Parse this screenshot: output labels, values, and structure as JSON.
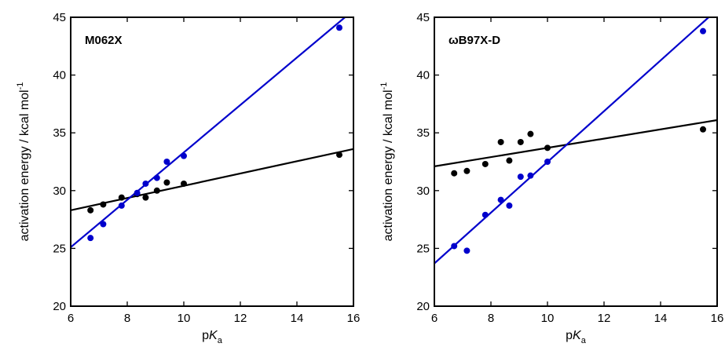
{
  "chart_data": [
    {
      "type": "scatter",
      "panel_label": "M062X",
      "xlabel": "pK_a",
      "ylabel": "activation energy / kcal mol^-1",
      "xlim": [
        6,
        16
      ],
      "ylim": [
        20,
        45
      ],
      "xticks": [
        6,
        8,
        10,
        12,
        14,
        16
      ],
      "yticks": [
        20,
        25,
        30,
        35,
        40,
        45
      ],
      "series": [
        {
          "color": "#000000",
          "points": [
            {
              "x": 6.7,
              "y": 28.3
            },
            {
              "x": 7.15,
              "y": 28.8
            },
            {
              "x": 7.8,
              "y": 29.4
            },
            {
              "x": 8.35,
              "y": 29.7
            },
            {
              "x": 8.65,
              "y": 29.4
            },
            {
              "x": 9.05,
              "y": 30.0
            },
            {
              "x": 9.4,
              "y": 30.7
            },
            {
              "x": 10.0,
              "y": 30.6
            },
            {
              "x": 15.5,
              "y": 33.1
            }
          ],
          "fit": {
            "x1": 6,
            "y1": 28.3,
            "x2": 16,
            "y2": 33.6
          }
        },
        {
          "color": "#0000cc",
          "points": [
            {
              "x": 6.7,
              "y": 25.9
            },
            {
              "x": 7.15,
              "y": 27.1
            },
            {
              "x": 7.8,
              "y": 28.7
            },
            {
              "x": 8.35,
              "y": 29.8
            },
            {
              "x": 8.65,
              "y": 30.6
            },
            {
              "x": 9.05,
              "y": 31.1
            },
            {
              "x": 9.4,
              "y": 32.5
            },
            {
              "x": 10.0,
              "y": 33.0
            },
            {
              "x": 15.5,
              "y": 44.1
            }
          ],
          "fit": {
            "x1": 6,
            "y1": 25.1,
            "x2": 15.7,
            "y2": 45
          }
        }
      ]
    },
    {
      "type": "scatter",
      "panel_label": "ωB97X-D",
      "xlabel": "pK_a",
      "ylabel": "activation energy / kcal mol^-1",
      "xlim": [
        6,
        16
      ],
      "ylim": [
        20,
        45
      ],
      "xticks": [
        6,
        8,
        10,
        12,
        14,
        16
      ],
      "yticks": [
        20,
        25,
        30,
        35,
        40,
        45
      ],
      "series": [
        {
          "color": "#000000",
          "points": [
            {
              "x": 6.7,
              "y": 31.5
            },
            {
              "x": 7.15,
              "y": 31.7
            },
            {
              "x": 7.8,
              "y": 32.3
            },
            {
              "x": 8.35,
              "y": 34.2
            },
            {
              "x": 8.65,
              "y": 32.6
            },
            {
              "x": 9.05,
              "y": 34.2
            },
            {
              "x": 9.4,
              "y": 34.9
            },
            {
              "x": 10.0,
              "y": 33.7
            },
            {
              "x": 15.5,
              "y": 35.3
            }
          ],
          "fit": {
            "x1": 6,
            "y1": 32.1,
            "x2": 16,
            "y2": 36.1
          }
        },
        {
          "color": "#0000cc",
          "points": [
            {
              "x": 6.7,
              "y": 25.2
            },
            {
              "x": 7.15,
              "y": 24.8
            },
            {
              "x": 7.8,
              "y": 27.9
            },
            {
              "x": 8.35,
              "y": 29.2
            },
            {
              "x": 8.65,
              "y": 28.7
            },
            {
              "x": 9.05,
              "y": 31.2
            },
            {
              "x": 9.4,
              "y": 31.3
            },
            {
              "x": 10.0,
              "y": 32.5
            },
            {
              "x": 15.5,
              "y": 43.8
            }
          ],
          "fit": {
            "x1": 6,
            "y1": 23.7,
            "x2": 15.7,
            "y2": 45
          }
        }
      ]
    }
  ]
}
